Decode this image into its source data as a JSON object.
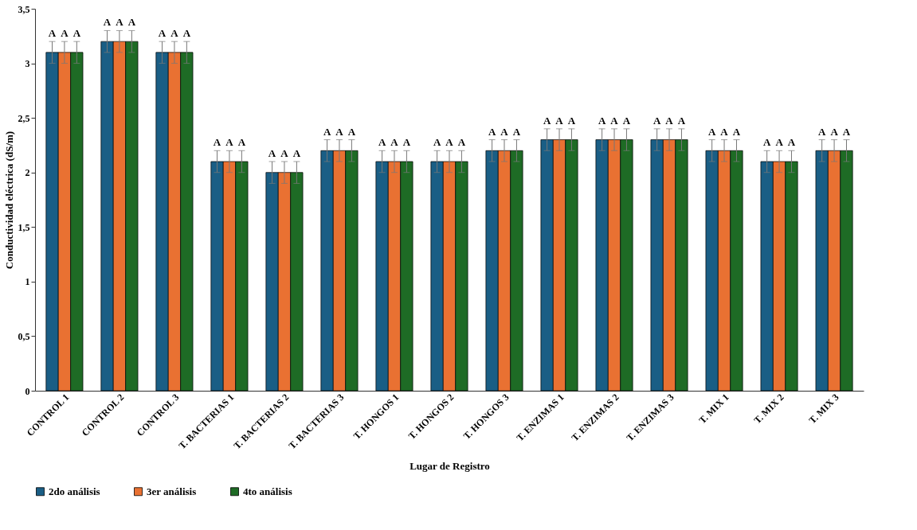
{
  "chart_data": {
    "type": "bar",
    "xlabel": "Lugar de Registro",
    "ylabel": "Conductividad eléctrica (dS/m)",
    "categories": [
      "CONTROL 1",
      "CONTROL 2",
      "CONTROL 3",
      "T. BACTERIAS 1",
      "T. BACTERIAS 2",
      "T. BACTERIAS 3",
      "T. HONGOS 1",
      "T. HONGOS 2",
      "T. HONGOS 3",
      "T. ENZIMAS 1",
      "T. ENZIMAS 2",
      "T. ENZIMAS 3",
      "T. MIX 1",
      "T. MIX 2",
      "T. MIX 3"
    ],
    "series": [
      {
        "name": "2do análisis",
        "color": "#1a5e85",
        "values": [
          3.1,
          3.2,
          3.1,
          2.1,
          2.0,
          2.2,
          2.1,
          2.1,
          2.2,
          2.3,
          2.3,
          2.3,
          2.2,
          2.1,
          2.2
        ],
        "errors": [
          0.1,
          0.1,
          0.1,
          0.1,
          0.1,
          0.1,
          0.1,
          0.1,
          0.1,
          0.1,
          0.1,
          0.1,
          0.1,
          0.1,
          0.1
        ],
        "value_labels": [
          "A",
          "A",
          "A",
          "A",
          "A",
          "A",
          "A",
          "A",
          "A",
          "A",
          "A",
          "A",
          "A",
          "A",
          "A"
        ]
      },
      {
        "name": "3er análisis",
        "color": "#e97132",
        "values": [
          3.1,
          3.2,
          3.1,
          2.1,
          2.0,
          2.2,
          2.1,
          2.1,
          2.2,
          2.3,
          2.3,
          2.3,
          2.2,
          2.1,
          2.2
        ],
        "errors": [
          0.1,
          0.1,
          0.1,
          0.1,
          0.1,
          0.1,
          0.1,
          0.1,
          0.1,
          0.1,
          0.1,
          0.1,
          0.1,
          0.1,
          0.1
        ],
        "value_labels": [
          "A",
          "A",
          "A",
          "A",
          "A",
          "A",
          "A",
          "A",
          "A",
          "A",
          "A",
          "A",
          "A",
          "A",
          "A"
        ]
      },
      {
        "name": "4to análisis",
        "color": "#1e6b25",
        "values": [
          3.1,
          3.2,
          3.1,
          2.1,
          2.0,
          2.2,
          2.1,
          2.1,
          2.2,
          2.3,
          2.3,
          2.3,
          2.2,
          2.1,
          2.2
        ],
        "errors": [
          0.1,
          0.1,
          0.1,
          0.1,
          0.1,
          0.1,
          0.1,
          0.1,
          0.1,
          0.1,
          0.1,
          0.1,
          0.1,
          0.1,
          0.1
        ],
        "value_labels": [
          "A",
          "A",
          "A",
          "A",
          "A",
          "A",
          "A",
          "A",
          "A",
          "A",
          "A",
          "A",
          "A",
          "A",
          "A"
        ]
      }
    ],
    "ylim": [
      0,
      3.5
    ],
    "yticks": [
      0,
      {
        "value": 0.5,
        "label": "0,5"
      },
      1,
      {
        "value": 1.5,
        "label": "1,5"
      },
      2,
      {
        "value": 2.5,
        "label": "2,5"
      },
      3,
      {
        "value": 3.5,
        "label": "3,5"
      }
    ],
    "grid": false,
    "legend": "bottom"
  }
}
